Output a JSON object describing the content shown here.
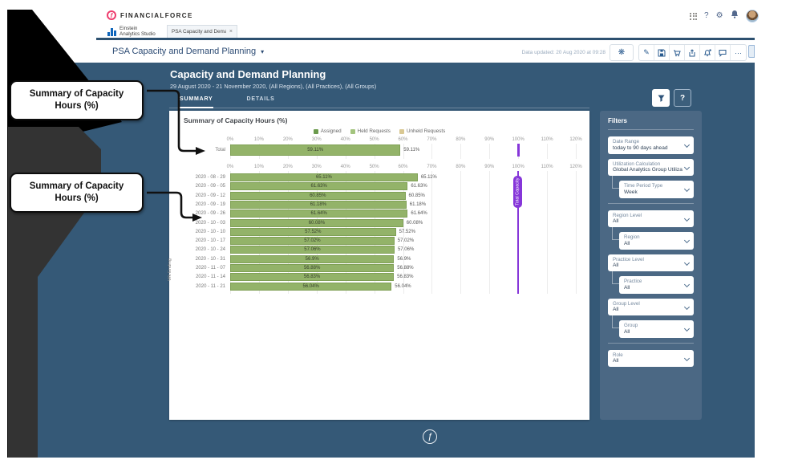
{
  "brand": {
    "name": "FINANCIALFORCE",
    "logo_glyph": "f",
    "accent_color": "#ee3d6e"
  },
  "header_icons": {
    "app_launcher": "grid",
    "help": "?",
    "settings": "⚙",
    "notifications": "bell",
    "avatar": "user-photo"
  },
  "tabbar": {
    "studio_line1": "Einstein",
    "studio_line2": "Analytics Studio",
    "tab_label": "PSA Capacity and Deman...",
    "tab_close": "×"
  },
  "toolbar": {
    "title": "PSA Capacity and Demand Planning",
    "caret": "▾",
    "data_updated": "Data updated: 20 Aug 2020 at 09:28",
    "asterisk_glyph": "❋",
    "edit_glyph": "✎",
    "more_glyph": "···"
  },
  "dashboard": {
    "title": "Capacity and Demand Planning",
    "subtitle": "29 August 2020 - 21 November 2020, (All Regions), (All Practices), (All Groups)",
    "tabs": [
      "SUMMARY",
      "DETAILS"
    ],
    "active_tab": "SUMMARY",
    "help_label": "?",
    "background_color": "#355977"
  },
  "callouts": {
    "box1": "Summary of Capacity Hours (%)",
    "box2": "Summary of Capacity Hours (%)"
  },
  "chart_data": {
    "type": "bar",
    "orientation": "horizontal",
    "title": "Summary of Capacity Hours (%)",
    "legend": [
      {
        "label": "Assigned",
        "color": "#6b9a4c"
      },
      {
        "label": "Held Requests",
        "color": "#a3c47e"
      },
      {
        "label": "Unheld Requests",
        "color": "#d9c893"
      }
    ],
    "axis_ticks": [
      "0%",
      "10%",
      "20%",
      "30%",
      "40%",
      "50%",
      "60%",
      "70%",
      "80%",
      "90%",
      "100%",
      "110%",
      "120%"
    ],
    "xlim": [
      0,
      120
    ],
    "grid": true,
    "bar_color": "#93b369",
    "total_row": {
      "category": "Total",
      "value": 59.11,
      "label": "59.11%"
    },
    "ylabel": "Wk Ending",
    "categories": [
      "2020 - 08 - 29",
      "2020 - 09 - 05",
      "2020 - 09 - 12",
      "2020 - 09 - 19",
      "2020 - 09 - 26",
      "2020 - 10 - 03",
      "2020 - 10 - 10",
      "2020 - 10 - 17",
      "2020 - 10 - 24",
      "2020 - 10 - 31",
      "2020 - 11 - 07",
      "2020 - 11 - 14",
      "2020 - 11 - 21"
    ],
    "values": [
      65.11,
      61.63,
      60.85,
      61.18,
      61.64,
      60.08,
      57.52,
      57.02,
      57.06,
      56.9,
      56.88,
      56.83,
      56.04
    ],
    "value_labels": [
      "65.11%",
      "61.63%",
      "60.85%",
      "61.18%",
      "61.64%",
      "60.08%",
      "57.52%",
      "57.02%",
      "57.06%",
      "56.9%",
      "56.88%",
      "56.83%",
      "56.04%"
    ],
    "reference_line": {
      "value": 100,
      "label": "Total Capacity",
      "color": "#8636d9"
    }
  },
  "filters": {
    "title": "Filters",
    "items": [
      {
        "label": "Date Range",
        "value": "today to 90 days ahead",
        "indent": false,
        "divider_before": false
      },
      {
        "label": "Utilization Calculation",
        "value": "Global Analytics Group Utilization",
        "indent": false,
        "divider_before": false
      },
      {
        "label": "Time Period Type",
        "value": "Week",
        "indent": true,
        "divider_before": false
      },
      {
        "label": "Region Level",
        "value": "All",
        "indent": false,
        "divider_before": true
      },
      {
        "label": "Region",
        "value": "All",
        "indent": true,
        "divider_before": false
      },
      {
        "label": "Practice Level",
        "value": "All",
        "indent": false,
        "divider_before": false
      },
      {
        "label": "Practice",
        "value": "All",
        "indent": true,
        "divider_before": false
      },
      {
        "label": "Group Level",
        "value": "All",
        "indent": false,
        "divider_before": false
      },
      {
        "label": "Group",
        "value": "All",
        "indent": true,
        "divider_before": false
      },
      {
        "label": "Role",
        "value": "All",
        "indent": false,
        "divider_before": true
      }
    ]
  },
  "footer": {
    "logo_glyph": "ƒ"
  }
}
